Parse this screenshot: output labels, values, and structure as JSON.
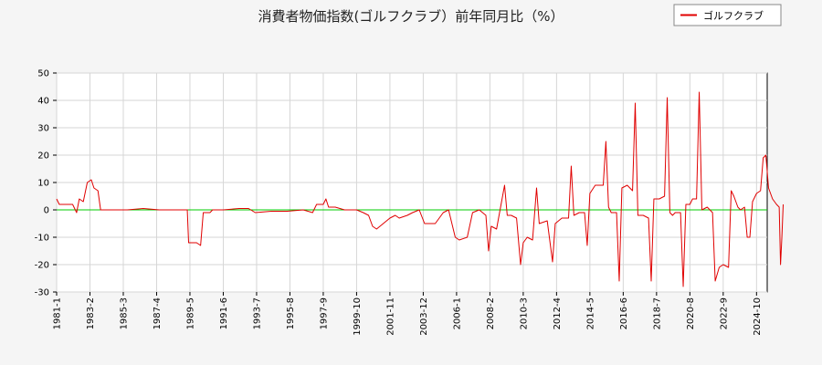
{
  "chart_data": {
    "type": "line",
    "title": "消費者物価指数(ゴルフクラブ）前年同月比（%）",
    "legend": {
      "label": "ゴルフクラブ",
      "placement": "top-right",
      "color": "#e00000"
    },
    "ylim": [
      -30,
      50
    ],
    "y_ticks": [
      -30,
      -20,
      -10,
      0,
      10,
      20,
      30,
      40,
      50
    ],
    "x_ticks": [
      "1981-1",
      "1983-2",
      "1985-3",
      "1987-4",
      "1989-5",
      "1991-6",
      "1993-7",
      "1995-8",
      "1997-9",
      "1999-10",
      "2001-11",
      "2003-12",
      "2006-1",
      "2008-2",
      "2010-3",
      "2012-4",
      "2014-5",
      "2016-6",
      "2018-7",
      "2020-8",
      "2022-9",
      "2024-10"
    ],
    "xlim": [
      "1981-1",
      "2025-6"
    ],
    "zero_line_color": "#00cc00",
    "grid": true,
    "series": [
      {
        "name": "ゴルフクラブ",
        "color": "#e00000",
        "points": [
          [
            "1981-1",
            4
          ],
          [
            "1981-3",
            2
          ],
          [
            "1981-6",
            2
          ],
          [
            "1982-1",
            2
          ],
          [
            "1982-3",
            0
          ],
          [
            "1982-4",
            -1
          ],
          [
            "1982-6",
            4
          ],
          [
            "1982-9",
            3
          ],
          [
            "1982-12",
            10
          ],
          [
            "1983-3",
            11
          ],
          [
            "1983-5",
            8
          ],
          [
            "1983-8",
            7
          ],
          [
            "1983-10",
            0
          ],
          [
            "1984-6",
            0
          ],
          [
            "1985-6",
            0
          ],
          [
            "1986-6",
            0.5
          ],
          [
            "1987-6",
            0
          ],
          [
            "1988-6",
            0
          ],
          [
            "1989-3",
            0
          ],
          [
            "1989-4",
            -12
          ],
          [
            "1989-10",
            -12
          ],
          [
            "1990-1",
            -13
          ],
          [
            "1990-3",
            -1
          ],
          [
            "1990-8",
            -1
          ],
          [
            "1990-10",
            0
          ],
          [
            "1991-6",
            0
          ],
          [
            "1992-6",
            0.5
          ],
          [
            "1993-1",
            0.5
          ],
          [
            "1993-6",
            -1
          ],
          [
            "1994-6",
            -0.5
          ],
          [
            "1995-6",
            -0.5
          ],
          [
            "1996-6",
            0
          ],
          [
            "1997-1",
            -1
          ],
          [
            "1997-4",
            2
          ],
          [
            "1997-9",
            2
          ],
          [
            "1997-11",
            4
          ],
          [
            "1998-1",
            1
          ],
          [
            "1998-6",
            1
          ],
          [
            "1999-1",
            0
          ],
          [
            "1999-10",
            0
          ],
          [
            "2000-3",
            -1
          ],
          [
            "2000-7",
            -2
          ],
          [
            "2000-10",
            -6
          ],
          [
            "2001-1",
            -7
          ],
          [
            "2001-6",
            -5
          ],
          [
            "2001-11",
            -3
          ],
          [
            "2002-3",
            -2
          ],
          [
            "2002-6",
            -3
          ],
          [
            "2002-12",
            -2
          ],
          [
            "2003-4",
            -1
          ],
          [
            "2003-9",
            0
          ],
          [
            "2004-1",
            -5
          ],
          [
            "2004-9",
            -5
          ],
          [
            "2005-3",
            -1
          ],
          [
            "2005-7",
            0
          ],
          [
            "2005-12",
            -10
          ],
          [
            "2006-3",
            -11
          ],
          [
            "2006-9",
            -10
          ],
          [
            "2007-1",
            -1
          ],
          [
            "2007-6",
            0
          ],
          [
            "2007-11",
            -2
          ],
          [
            "2008-1",
            -15
          ],
          [
            "2008-3",
            -6
          ],
          [
            "2008-7",
            -7
          ],
          [
            "2009-1",
            9
          ],
          [
            "2009-3",
            -2
          ],
          [
            "2009-6",
            -2
          ],
          [
            "2009-10",
            -3
          ],
          [
            "2010-1",
            -20
          ],
          [
            "2010-3",
            -12
          ],
          [
            "2010-6",
            -10
          ],
          [
            "2010-10",
            -11
          ],
          [
            "2011-1",
            8
          ],
          [
            "2011-3",
            -5
          ],
          [
            "2011-9",
            -4
          ],
          [
            "2012-1",
            -19
          ],
          [
            "2012-3",
            -5
          ],
          [
            "2012-8",
            -3
          ],
          [
            "2013-1",
            -3
          ],
          [
            "2013-3",
            16
          ],
          [
            "2013-5",
            -2
          ],
          [
            "2013-9",
            -1
          ],
          [
            "2014-1",
            -1
          ],
          [
            "2014-3",
            -13
          ],
          [
            "2014-5",
            6
          ],
          [
            "2014-9",
            9
          ],
          [
            "2015-3",
            9
          ],
          [
            "2015-5",
            25
          ],
          [
            "2015-7",
            1
          ],
          [
            "2015-9",
            -1
          ],
          [
            "2016-1",
            -1
          ],
          [
            "2016-3",
            -26
          ],
          [
            "2016-5",
            8
          ],
          [
            "2016-9",
            9
          ],
          [
            "2017-1",
            7
          ],
          [
            "2017-3",
            39
          ],
          [
            "2017-5",
            -2
          ],
          [
            "2017-9",
            -2
          ],
          [
            "2018-1",
            -3
          ],
          [
            "2018-3",
            -26
          ],
          [
            "2018-5",
            4
          ],
          [
            "2018-9",
            4
          ],
          [
            "2019-1",
            5
          ],
          [
            "2019-3",
            41
          ],
          [
            "2019-5",
            -1
          ],
          [
            "2019-7",
            -2
          ],
          [
            "2019-9",
            -1
          ],
          [
            "2020-1",
            -1
          ],
          [
            "2020-3",
            -28
          ],
          [
            "2020-5",
            2
          ],
          [
            "2020-8",
            2
          ],
          [
            "2020-10",
            4
          ],
          [
            "2021-1",
            4
          ],
          [
            "2021-3",
            43
          ],
          [
            "2021-5",
            0
          ],
          [
            "2021-9",
            1
          ],
          [
            "2022-1",
            -1
          ],
          [
            "2022-3",
            -26
          ],
          [
            "2022-6",
            -21
          ],
          [
            "2022-9",
            -20
          ],
          [
            "2023-1",
            -21
          ],
          [
            "2023-3",
            7
          ],
          [
            "2023-5",
            5
          ],
          [
            "2023-8",
            1
          ],
          [
            "2023-10",
            0
          ],
          [
            "2024-1",
            1
          ],
          [
            "2024-3",
            -10
          ],
          [
            "2024-5",
            -10
          ],
          [
            "2024-7",
            3
          ],
          [
            "2024-10",
            6
          ],
          [
            "2025-1",
            7
          ],
          [
            "2025-3",
            19
          ],
          [
            "2025-5",
            20
          ],
          [
            "2025-7",
            8
          ],
          [
            "2025-10",
            4
          ],
          [
            "2026-1",
            2
          ],
          [
            "2026-3",
            1
          ],
          [
            "2026-4",
            -20
          ],
          [
            "2026-5",
            -10
          ],
          [
            "2026-6",
            2
          ]
        ]
      }
    ]
  }
}
